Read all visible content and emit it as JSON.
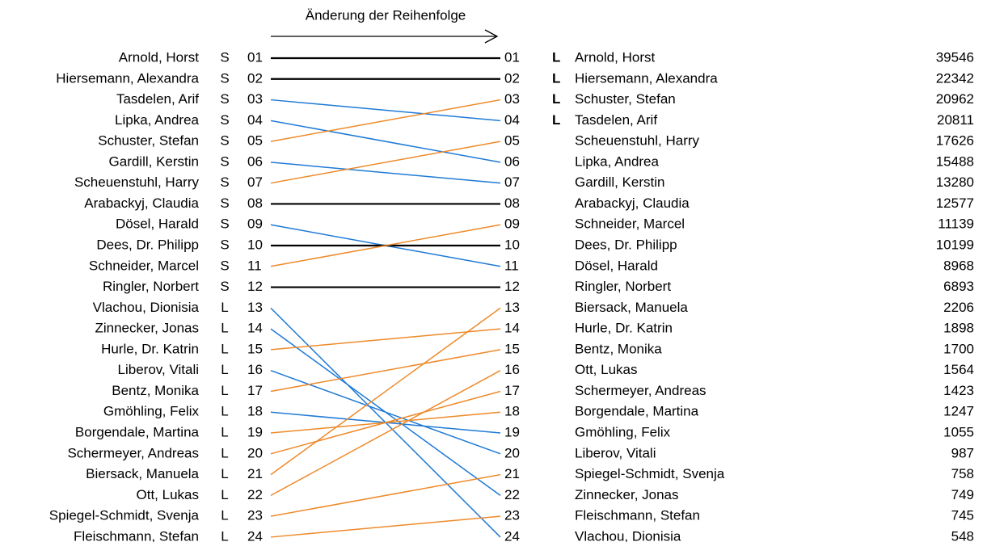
{
  "header": {
    "title": "Änderung der Reihenfolge"
  },
  "left": [
    {
      "name": "Arnold, Horst",
      "list": "S",
      "rank": "01"
    },
    {
      "name": "Hiersemann, Alexandra",
      "list": "S",
      "rank": "02"
    },
    {
      "name": "Tasdelen, Arif",
      "list": "S",
      "rank": "03"
    },
    {
      "name": "Lipka, Andrea",
      "list": "S",
      "rank": "04"
    },
    {
      "name": "Schuster, Stefan",
      "list": "S",
      "rank": "05"
    },
    {
      "name": "Gardill, Kerstin",
      "list": "S",
      "rank": "06"
    },
    {
      "name": "Scheuenstuhl, Harry",
      "list": "S",
      "rank": "07"
    },
    {
      "name": "Arabackyj, Claudia",
      "list": "S",
      "rank": "08"
    },
    {
      "name": "Dösel, Harald",
      "list": "S",
      "rank": "09"
    },
    {
      "name": "Dees, Dr. Philipp",
      "list": "S",
      "rank": "10"
    },
    {
      "name": "Schneider, Marcel",
      "list": "S",
      "rank": "11"
    },
    {
      "name": "Ringler, Norbert",
      "list": "S",
      "rank": "12"
    },
    {
      "name": "Vlachou, Dionisia",
      "list": "L",
      "rank": "13"
    },
    {
      "name": "Zinnecker, Jonas",
      "list": "L",
      "rank": "14"
    },
    {
      "name": "Hurle, Dr. Katrin",
      "list": "L",
      "rank": "15"
    },
    {
      "name": "Liberov, Vitali",
      "list": "L",
      "rank": "16"
    },
    {
      "name": "Bentz, Monika",
      "list": "L",
      "rank": "17"
    },
    {
      "name": "Gmöhling, Felix",
      "list": "L",
      "rank": "18"
    },
    {
      "name": "Borgendale, Martina",
      "list": "L",
      "rank": "19"
    },
    {
      "name": "Schermeyer, Andreas",
      "list": "L",
      "rank": "20"
    },
    {
      "name": "Biersack, Manuela",
      "list": "L",
      "rank": "21"
    },
    {
      "name": "Ott, Lukas",
      "list": "L",
      "rank": "22"
    },
    {
      "name": "Spiegel-Schmidt, Svenja",
      "list": "L",
      "rank": "23"
    },
    {
      "name": "Fleischmann, Stefan",
      "list": "L",
      "rank": "24"
    }
  ],
  "right": [
    {
      "rank": "01",
      "mark": "L",
      "name": "Arnold, Horst",
      "votes": 39546
    },
    {
      "rank": "02",
      "mark": "L",
      "name": "Hiersemann, Alexandra",
      "votes": 22342
    },
    {
      "rank": "03",
      "mark": "L",
      "name": "Schuster, Stefan",
      "votes": 20962
    },
    {
      "rank": "04",
      "mark": "L",
      "name": "Tasdelen, Arif",
      "votes": 20811
    },
    {
      "rank": "05",
      "name": "Scheuenstuhl, Harry",
      "votes": 17626
    },
    {
      "rank": "06",
      "name": "Lipka, Andrea",
      "votes": 15488
    },
    {
      "rank": "07",
      "name": "Gardill, Kerstin",
      "votes": 13280
    },
    {
      "rank": "08",
      "name": "Arabackyj, Claudia",
      "votes": 12577
    },
    {
      "rank": "09",
      "name": "Schneider, Marcel",
      "votes": 11139
    },
    {
      "rank": "10",
      "name": "Dees, Dr. Philipp",
      "votes": 10199
    },
    {
      "rank": "11",
      "name": "Dösel, Harald",
      "votes": 8968
    },
    {
      "rank": "12",
      "name": "Ringler, Norbert",
      "votes": 6893
    },
    {
      "rank": "13",
      "name": "Biersack, Manuela",
      "votes": 2206
    },
    {
      "rank": "14",
      "name": "Hurle, Dr. Katrin",
      "votes": 1898
    },
    {
      "rank": "15",
      "name": "Bentz, Monika",
      "votes": 1700
    },
    {
      "rank": "16",
      "name": "Ott, Lukas",
      "votes": 1564
    },
    {
      "rank": "17",
      "name": "Schermeyer, Andreas",
      "votes": 1423
    },
    {
      "rank": "18",
      "name": "Borgendale, Martina",
      "votes": 1247
    },
    {
      "rank": "19",
      "name": "Gmöhling, Felix",
      "votes": 1055
    },
    {
      "rank": "20",
      "name": "Liberov, Vitali",
      "votes": 987
    },
    {
      "rank": "21",
      "name": "Spiegel-Schmidt, Svenja",
      "votes": 758
    },
    {
      "rank": "22",
      "name": "Zinnecker, Jonas",
      "votes": 749
    },
    {
      "rank": "23",
      "name": "Fleischmann, Stefan",
      "votes": 745
    },
    {
      "rank": "24",
      "name": "Vlachou, Dionisia",
      "votes": 548
    }
  ]
}
